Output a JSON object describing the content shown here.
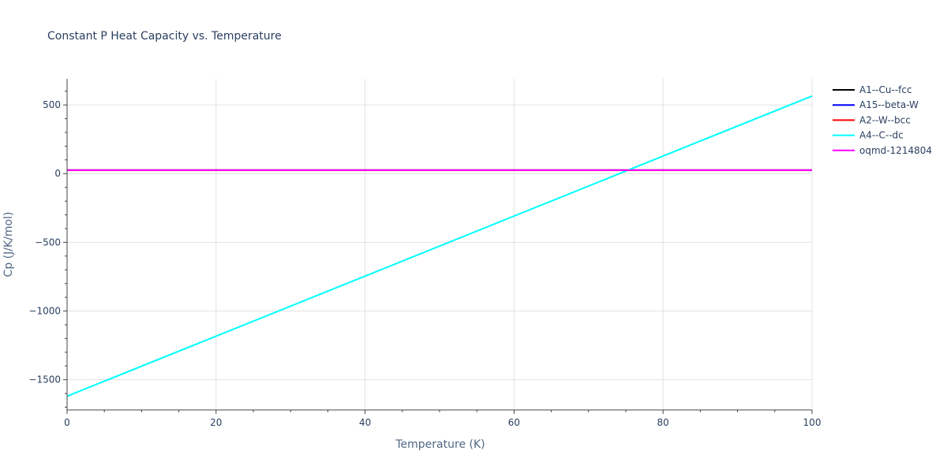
{
  "chart_data": {
    "type": "line",
    "title": "Constant P Heat Capacity vs. Temperature",
    "xlabel": "Temperature (K)",
    "ylabel": "Cp (J/K/mol)",
    "xlim": [
      0,
      100
    ],
    "ylim": [
      -1720,
      690
    ],
    "x_ticks": [
      0,
      20,
      40,
      60,
      80,
      100
    ],
    "y_ticks": [
      500,
      0,
      -500,
      -1000,
      -1500
    ],
    "y_tick_labels": [
      "500",
      "0",
      "−500",
      "−1000",
      "−1500"
    ],
    "grid": true,
    "legend_position": "right",
    "series": [
      {
        "name": "A1--Cu--fcc",
        "color": "#000000",
        "x": [
          0,
          100
        ],
        "y": [
          25,
          25
        ]
      },
      {
        "name": "A15--beta-W",
        "color": "#0000ff",
        "x": [
          0,
          100
        ],
        "y": [
          25,
          25
        ]
      },
      {
        "name": "A2--W--bcc",
        "color": "#ff0000",
        "x": [
          0,
          100
        ],
        "y": [
          25,
          25
        ]
      },
      {
        "name": "A4--C--dc",
        "color": "#00ffff",
        "x": [
          0,
          100
        ],
        "y": [
          -1620,
          565
        ]
      },
      {
        "name": "oqmd-1214804",
        "color": "#ff00ff",
        "x": [
          0,
          100
        ],
        "y": [
          25,
          25
        ]
      }
    ]
  }
}
